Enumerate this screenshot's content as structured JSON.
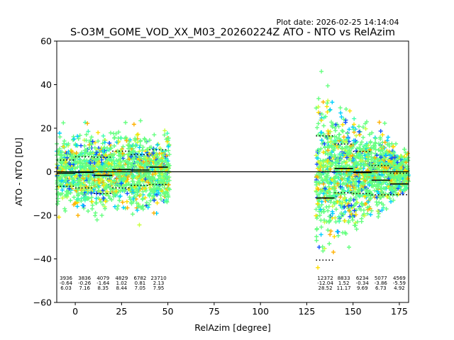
{
  "header": {
    "plot_date": "Plot date: 2026-02-25 14:14:04",
    "title": "S-O3M_GOME_VOD_XX_M03_20260224Z ATO - NTO vs RelAzim"
  },
  "chart_data": {
    "type": "scatter",
    "title": "S-O3M_GOME_VOD_XX_M03_20260224Z ATO - NTO vs RelAzim",
    "xlabel": "RelAzim [degree]",
    "ylabel": "ATO - NTO [DU]",
    "xlim": [
      -10,
      180
    ],
    "ylim": [
      -60,
      60
    ],
    "x_ticks": [
      0,
      25,
      50,
      75,
      100,
      125,
      150,
      175
    ],
    "y_ticks": [
      -60,
      -40,
      -20,
      0,
      20,
      40,
      60
    ],
    "marker": "+",
    "grid": false,
    "zero_line": 0,
    "bins": [
      {
        "x_start": -10,
        "x_end": 0,
        "count": "3936",
        "mean": "-0.64",
        "std": "6.03"
      },
      {
        "x_start": 0,
        "x_end": 10,
        "count": "3836",
        "mean": "-0.26",
        "std": "7.16"
      },
      {
        "x_start": 10,
        "x_end": 20,
        "count": "4079",
        "mean": "-1.64",
        "std": "8.35"
      },
      {
        "x_start": 20,
        "x_end": 30,
        "count": "4829",
        "mean": "1.02",
        "std": "8.44"
      },
      {
        "x_start": 30,
        "x_end": 40,
        "count": "6782",
        "mean": "0.81",
        "std": "7.05"
      },
      {
        "x_start": 40,
        "x_end": 50,
        "count": "23710",
        "mean": "2.13",
        "std": "7.95"
      },
      {
        "x_start": 130,
        "x_end": 140,
        "count": "12372",
        "mean": "-12.04",
        "std": "28.52"
      },
      {
        "x_start": 140,
        "x_end": 150,
        "count": "8833",
        "mean": "1.52",
        "std": "11.17"
      },
      {
        "x_start": 150,
        "x_end": 160,
        "count": "6234",
        "mean": "-0.34",
        "std": "9.69"
      },
      {
        "x_start": 160,
        "x_end": 170,
        "count": "5077",
        "mean": "-3.86",
        "std": "6.73"
      },
      {
        "x_start": 170,
        "x_end": 180,
        "count": "4569",
        "mean": "-5.59",
        "std": "4.92"
      }
    ],
    "clusters": [
      {
        "x_range": [
          -10,
          51
        ],
        "y_center": 0,
        "y_spread": 14
      },
      {
        "x_range": [
          130,
          180
        ],
        "y_center": 0,
        "y_spread": 30
      }
    ],
    "colors": {
      "main": "#66ff80",
      "secondary": [
        "#00d0ff",
        "#ffe000",
        "#c8ff3c",
        "#1050ff",
        "#ffb000",
        "#40ffb0"
      ],
      "mean_line": "#000000",
      "zero_line": "#000000"
    }
  }
}
